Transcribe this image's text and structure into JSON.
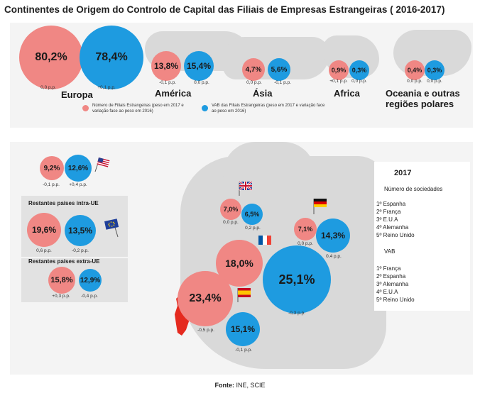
{
  "title": "Continentes de Origem do Controlo de Capital das Filiais de Empresas Estrangeiras ( 2016-2017)",
  "source_label": "Fonte:",
  "source_value": "INE, SCIE",
  "legend": {
    "pink": "Número de Filiais Estrangeiras (peso em 2017 e variação face ao peso em 2016)",
    "blue": "VAB das Filiais Estrangeiras (peso em 2017 e variação face ao peso em 2016)"
  },
  "colors": {
    "pink": "#f08784",
    "blue": "#1e9be0",
    "portugal": "#e52a1f",
    "panel": "#f4f4f4"
  },
  "box_titles": {
    "intra_ue": "Restantes países intra-UE",
    "extra_ue": "Restantes países extra-UE"
  },
  "ranking": {
    "year": "2017",
    "heading1": "Número de sociedades",
    "list1": [
      "1º Espanha",
      "2º França",
      "3º E.U.A",
      "4º Alemanha",
      "5º Reino Unido"
    ],
    "heading2": "VAB",
    "list2": [
      "1º França",
      "2º Espanha",
      "3º Alemanha",
      "4º E.U.A",
      "5º Reino Unido"
    ]
  },
  "chart_data": [
    {
      "type": "bubble",
      "title": "Continentes de Origem do Controlo de Capital das Filiais de Empresas Estrangeiras ( 2016-2017)",
      "series": [
        {
          "name": "Número de Filiais Estrangeiras (peso em 2017 e variação face ao peso em 2016)",
          "color": "#f08784"
        },
        {
          "name": "VAB das Filiais Estrangeiras (peso em 2017 e variação face ao peso em 2016)",
          "color": "#1e9be0"
        }
      ],
      "groups": [
        {
          "name": "Europa",
          "pink": {
            "label": "80,2%",
            "value": 80.2,
            "change": "0,0 p.p."
          },
          "blue": {
            "label": "78,4%",
            "value": 78.4,
            "change": "+0,1 p.p."
          }
        },
        {
          "name": "América",
          "pink": {
            "label": "13,8%",
            "value": 13.8,
            "change": "-0,1 p.p."
          },
          "blue": {
            "label": "15,4%",
            "value": 15.4,
            "change": "0,0 p.p."
          }
        },
        {
          "name": "Ásia",
          "pink": {
            "label": "4,7%",
            "value": 4.7,
            "change": "0,0 p.p."
          },
          "blue": {
            "label": "5,6%",
            "value": 5.6,
            "change": "-0,1 p.p."
          }
        },
        {
          "name": "Africa",
          "pink": {
            "label": "0,9%",
            "value": 0.9,
            "change": "+0,1 p.p."
          },
          "blue": {
            "label": "0,3%",
            "value": 0.3,
            "change": "0,0 p.p."
          }
        },
        {
          "name": "Oceania e outras regiões polares",
          "pink": {
            "label": "0,4%",
            "value": 0.4,
            "change": "0,0 p.p."
          },
          "blue": {
            "label": "0,3%",
            "value": 0.3,
            "change": "0,0 p.p."
          }
        }
      ]
    },
    {
      "type": "bubble",
      "series": [
        {
          "name": "Número de Filiais Estrangeiras (peso em 2017 e variação face ao peso em 2016)",
          "color": "#f08784"
        },
        {
          "name": "VAB das Filiais Estrangeiras (peso em 2017 e variação face ao peso em 2016)",
          "color": "#1e9be0"
        }
      ],
      "groups": [
        {
          "name": "E.U.A",
          "pink": {
            "label": "9,2%",
            "value": 9.2,
            "change": "-0,1 p.p."
          },
          "blue": {
            "label": "12,6%",
            "value": 12.6,
            "change": "+0,4 p.p."
          }
        },
        {
          "name": "Restantes países intra-UE",
          "pink": {
            "label": "19,6%",
            "value": 19.6,
            "change": "0,6 p.p."
          },
          "blue": {
            "label": "13,5%",
            "value": 13.5,
            "change": "-0,2 p.p."
          }
        },
        {
          "name": "Restantes países extra-UE",
          "pink": {
            "label": "15,8%",
            "value": 15.8,
            "change": "+0,3 p.p."
          },
          "blue": {
            "label": "12,9%",
            "value": 12.9,
            "change": "-0,4 p.p."
          }
        },
        {
          "name": "Reino Unido",
          "pink": {
            "label": "7,0%",
            "value": 7.0,
            "change": "0,0 p.p."
          },
          "blue": {
            "label": "6,5%",
            "value": 6.5,
            "change": "0,2 p.p."
          }
        },
        {
          "name": "Alemanha",
          "pink": {
            "label": "7,1%",
            "value": 7.1,
            "change": "0,0 p.p."
          },
          "blue": {
            "label": "14,3%",
            "value": 14.3,
            "change": "0,4 p.p."
          }
        },
        {
          "name": "França",
          "pink": {
            "label": "18,0%",
            "value": 18.0,
            "change": ""
          },
          "blue": {
            "label": "25,1%",
            "value": 25.1,
            "change": "-0,3 p.p."
          }
        },
        {
          "name": "Espanha",
          "pink": {
            "label": "23,4%",
            "value": 23.4,
            "change": "-0,5 p.p."
          },
          "blue": {
            "label": "15,1%",
            "value": 15.1,
            "change": "-0,1 p.p."
          }
        }
      ]
    }
  ]
}
